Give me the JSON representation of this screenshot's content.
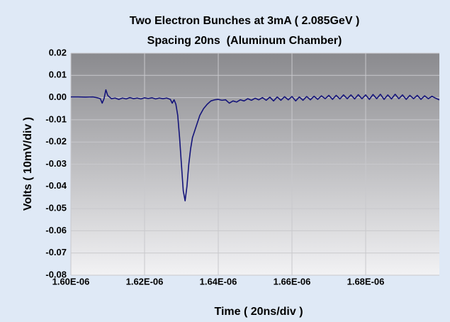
{
  "chart_data": {
    "type": "line",
    "title": "Two Electron Bunches at 3mA ( 2.085GeV )",
    "subtitle": "Spacing 20ns  (Aluminum Chamber)",
    "x_label": "Time ( 20ns/div )",
    "y_label": "Volts ( 10mV/div )",
    "xlim": [
      1.6e-06,
      1.7e-06
    ],
    "ylim": [
      -0.08,
      0.02
    ],
    "xticks": [
      {
        "value": 1.6e-06,
        "label": "1.60E-06"
      },
      {
        "value": 1.62e-06,
        "label": "1.62E-06"
      },
      {
        "value": 1.64e-06,
        "label": "1.64E-06"
      },
      {
        "value": 1.66e-06,
        "label": "1.66E-06"
      },
      {
        "value": 1.68e-06,
        "label": "1.68E-06"
      }
    ],
    "yticks": [
      0.02,
      0.01,
      {
        "value": 0,
        "label": "0.00"
      },
      -0.01,
      -0.02,
      -0.03,
      -0.04,
      -0.05,
      -0.06,
      -0.07,
      -0.08
    ],
    "grid": true,
    "series": [
      {
        "color": "#14147a",
        "x": [
          1.6e-06,
          1.602e-06,
          1.604e-06,
          1.606e-06,
          1.607e-06,
          1.608e-06,
          1.6085e-06,
          1.609e-06,
          1.6095e-06,
          1.61e-06,
          1.611e-06,
          1.612e-06,
          1.613e-06,
          1.614e-06,
          1.615e-06,
          1.616e-06,
          1.617e-06,
          1.618e-06,
          1.619e-06,
          1.62e-06,
          1.621e-06,
          1.622e-06,
          1.623e-06,
          1.624e-06,
          1.625e-06,
          1.626e-06,
          1.627e-06,
          1.6275e-06,
          1.628e-06,
          1.6285e-06,
          1.629e-06,
          1.6295e-06,
          1.63e-06,
          1.6305e-06,
          1.631e-06,
          1.6315e-06,
          1.632e-06,
          1.6325e-06,
          1.633e-06,
          1.634e-06,
          1.635e-06,
          1.636e-06,
          1.637e-06,
          1.638e-06,
          1.639e-06,
          1.64e-06,
          1.641e-06,
          1.642e-06,
          1.643e-06,
          1.644e-06,
          1.645e-06,
          1.646e-06,
          1.647e-06,
          1.648e-06,
          1.649e-06,
          1.65e-06,
          1.651e-06,
          1.652e-06,
          1.653e-06,
          1.654e-06,
          1.655e-06,
          1.656e-06,
          1.657e-06,
          1.658e-06,
          1.659e-06,
          1.66e-06,
          1.661e-06,
          1.662e-06,
          1.663e-06,
          1.664e-06,
          1.665e-06,
          1.666e-06,
          1.667e-06,
          1.668e-06,
          1.669e-06,
          1.67e-06,
          1.671e-06,
          1.672e-06,
          1.673e-06,
          1.674e-06,
          1.675e-06,
          1.676e-06,
          1.677e-06,
          1.678e-06,
          1.679e-06,
          1.68e-06,
          1.681e-06,
          1.682e-06,
          1.683e-06,
          1.684e-06,
          1.685e-06,
          1.686e-06,
          1.687e-06,
          1.688e-06,
          1.689e-06,
          1.69e-06,
          1.691e-06,
          1.692e-06,
          1.693e-06,
          1.694e-06,
          1.695e-06,
          1.696e-06,
          1.697e-06,
          1.698e-06,
          1.699e-06,
          1.7e-06
        ],
        "values": [
          0.0003,
          0.0003,
          0.0002,
          0.0003,
          0.0,
          -0.0005,
          -0.0025,
          -0.0005,
          0.0035,
          0.001,
          -0.0005,
          -0.0002,
          -0.0008,
          -0.0002,
          -0.0006,
          0.0,
          -0.0005,
          -0.0002,
          -0.0006,
          -0.0001,
          -0.0004,
          -0.0001,
          -0.0006,
          -0.0002,
          -0.0005,
          -0.0002,
          -0.0008,
          -0.0025,
          -0.001,
          -0.003,
          -0.008,
          -0.018,
          -0.03,
          -0.042,
          -0.0465,
          -0.04,
          -0.03,
          -0.023,
          -0.018,
          -0.013,
          -0.008,
          -0.005,
          -0.003,
          -0.0015,
          -0.001,
          -0.0008,
          -0.0012,
          -0.001,
          -0.0025,
          -0.0015,
          -0.002,
          -0.001,
          -0.0015,
          -0.0005,
          -0.0012,
          -0.0003,
          -0.001,
          0.0,
          -0.0012,
          0.0002,
          -0.0015,
          0.0003,
          -0.0012,
          0.0004,
          -0.001,
          0.0005,
          -0.0015,
          0.0003,
          -0.0012,
          0.0005,
          -0.001,
          0.0006,
          -0.0008,
          0.0008,
          -0.0005,
          0.001,
          -0.0008,
          0.001,
          -0.0006,
          0.0012,
          -0.0005,
          0.0012,
          -0.0006,
          0.0013,
          -0.0005,
          0.0012,
          -0.0008,
          0.0014,
          -0.0005,
          0.0015,
          -0.0008,
          0.0012,
          -0.0006,
          0.0015,
          -0.0005,
          0.0012,
          -0.0008,
          0.001,
          -0.0005,
          0.001,
          -0.0008,
          0.0008,
          -0.0005,
          0.0006,
          -0.0003,
          -0.001
        ]
      }
    ]
  }
}
